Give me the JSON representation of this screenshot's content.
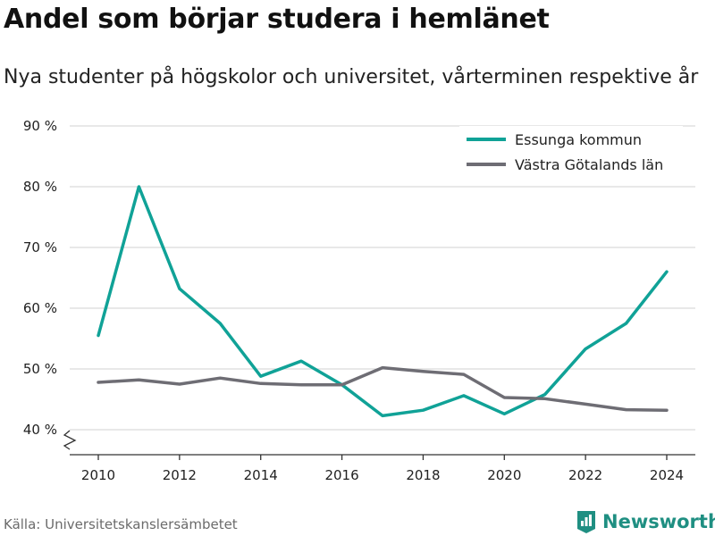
{
  "title": "Andel som börjar studera i hemlänet",
  "subtitle": "Nya studenter på högskolor och universitet, vårterminen respektive år",
  "source": "Källa: Universitetskanslersämbetet",
  "brand": {
    "name": "Newsworthy",
    "icon": "bar-chart-logo-icon",
    "color": "#1f8f82"
  },
  "chart_data": {
    "type": "line",
    "x": [
      2010,
      2011,
      2012,
      2013,
      2014,
      2015,
      2016,
      2017,
      2018,
      2019,
      2020,
      2021,
      2022,
      2023,
      2024
    ],
    "x_ticks": [
      "2010",
      "2012",
      "2014",
      "2016",
      "2018",
      "2020",
      "2022",
      "2024"
    ],
    "y_ticks": [
      "40 %",
      "50 %",
      "60 %",
      "70 %",
      "80 %",
      "90 %"
    ],
    "ylim": [
      40,
      90
    ],
    "xlim": [
      2010,
      2024
    ],
    "y_axis_break": true,
    "grid": "horizontal",
    "legend_position": "top-right",
    "series": [
      {
        "name": "Essunga kommun",
        "color": "#10a297",
        "values": [
          55.5,
          80,
          63.2,
          57.5,
          48.8,
          51.3,
          47.4,
          42.3,
          43.2,
          45.6,
          42.6,
          45.8,
          53.3,
          57.5,
          66
        ]
      },
      {
        "name": "Västra Götalands län",
        "color": "#6e6d74",
        "values": [
          47.8,
          48.2,
          47.5,
          48.5,
          47.6,
          47.4,
          47.4,
          50.2,
          49.6,
          49.1,
          45.3,
          45.1,
          44.2,
          43.3,
          43.2
        ]
      }
    ]
  }
}
